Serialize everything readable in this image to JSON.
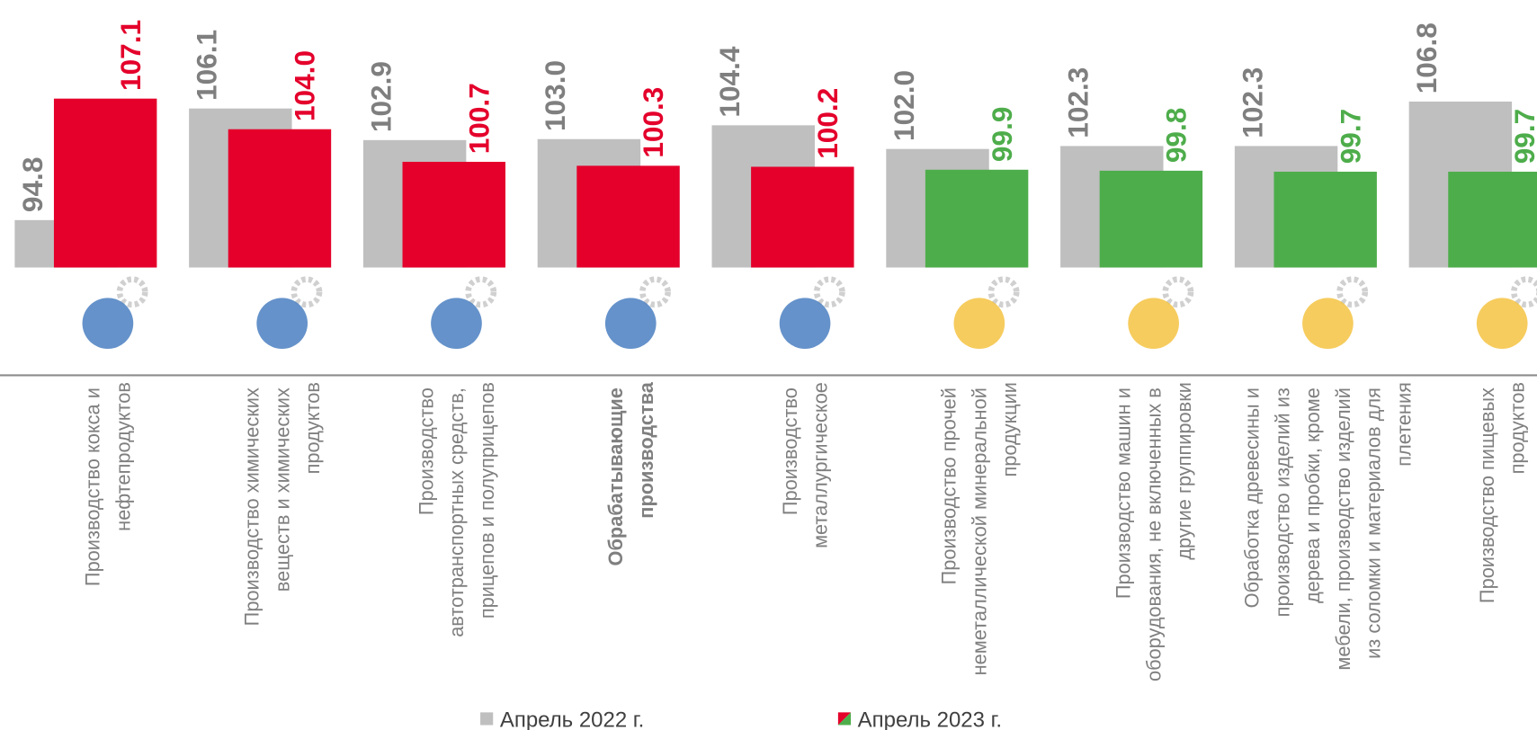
{
  "chart_data": {
    "type": "bar",
    "categories": [
      "Производство кокса и нефтепродуктов",
      "Производство химических веществ и химических продуктов",
      "Производство автотранспортных средств, прицепов и полуприцепов",
      "Обрабатывающие производства",
      "Производство металлургическое",
      "Производство прочей неметаллической минеральной продукции",
      "Производство машин и оборудования, не включенных в другие группировки",
      "Обработка древесины и производство изделий из дерева и пробки, кроме мебели, производство изделий из соломки и материалов для плетения",
      "Производство пищевых продуктов"
    ],
    "series": [
      {
        "name": "Апрель 2022 г.",
        "color": "#bfbfbf",
        "label_color": "#7f7f7f",
        "values": [
          94.8,
          106.1,
          102.9,
          103.0,
          104.4,
          102.0,
          102.3,
          102.3,
          106.8
        ],
        "value_labels": [
          "94.8",
          "106.1",
          "102.9",
          "103.0",
          "104.4",
          "102.0",
          "102.3",
          "102.3",
          "106.8"
        ]
      },
      {
        "name": "Апрель 2023 г.",
        "colors": [
          "#e4002b",
          "#e4002b",
          "#e4002b",
          "#e4002b",
          "#e4002b",
          "#4ead4b",
          "#4ead4b",
          "#4ead4b",
          "#4ead4b"
        ],
        "values": [
          107.1,
          104.0,
          100.7,
          100.3,
          100.2,
          99.9,
          99.8,
          99.7,
          99.7
        ],
        "value_labels": [
          "107.1",
          "104.0",
          "100.7",
          "100.3",
          "100.2",
          "99.9",
          "99.8",
          "99.7",
          "99.7"
        ]
      }
    ],
    "ylim": [
      90,
      110
    ],
    "highlight": 3
  }
}
